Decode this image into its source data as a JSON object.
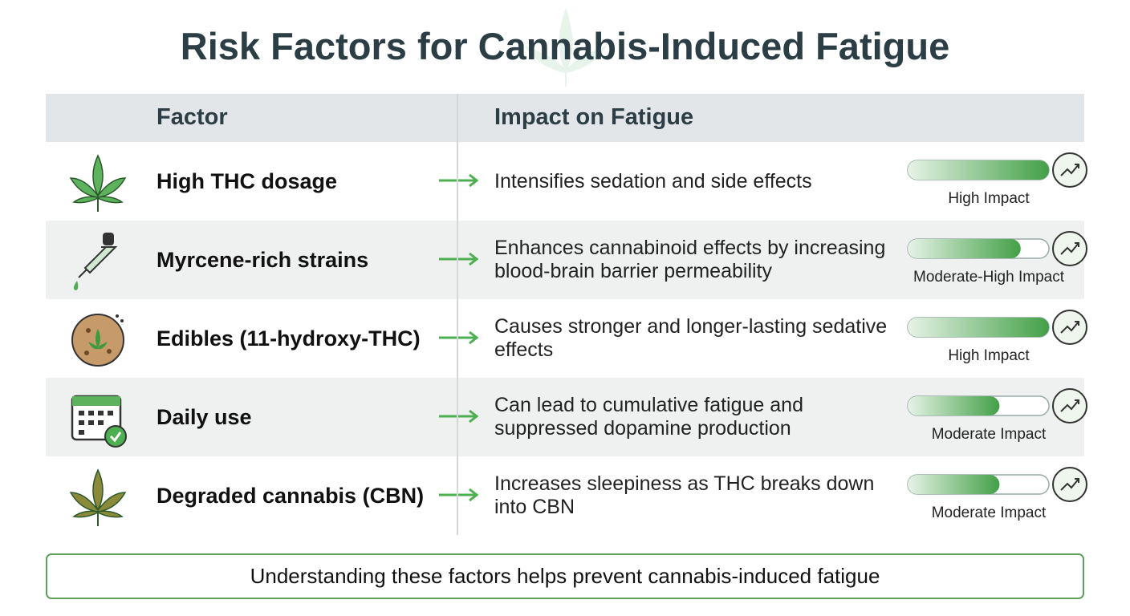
{
  "title": "Risk Factors for Cannabis-Induced Fatigue",
  "table": {
    "headers": [
      "Factor",
      "Impact on Fatigue"
    ],
    "rows": [
      {
        "factor": "High THC dosage",
        "impact": "Intensifies sedation and side effects",
        "level": "High Impact",
        "meter": 100
      },
      {
        "factor": "Myrcene-rich strains",
        "impact": "Enhances cannabinoid effects by increasing blood-brain barrier permeability",
        "level": "Moderate-High Impact",
        "meter": 80
      },
      {
        "factor": "Edibles (11-hydroxy-THC)",
        "impact": "Causes stronger and longer-lasting sedative effects",
        "level": "High Impact",
        "meter": 100
      },
      {
        "factor": "Daily use",
        "impact": "Can lead to cumulative fatigue and suppressed dopamine production",
        "level": "Moderate Impact",
        "meter": 65
      },
      {
        "factor": "Degraded cannabis (CBN)",
        "impact": "Increases sleepiness as THC breaks down into CBN",
        "level": "Moderate Impact",
        "meter": 65
      }
    ]
  },
  "footer": "Understanding these factors helps prevent cannabis-induced fatigue"
}
